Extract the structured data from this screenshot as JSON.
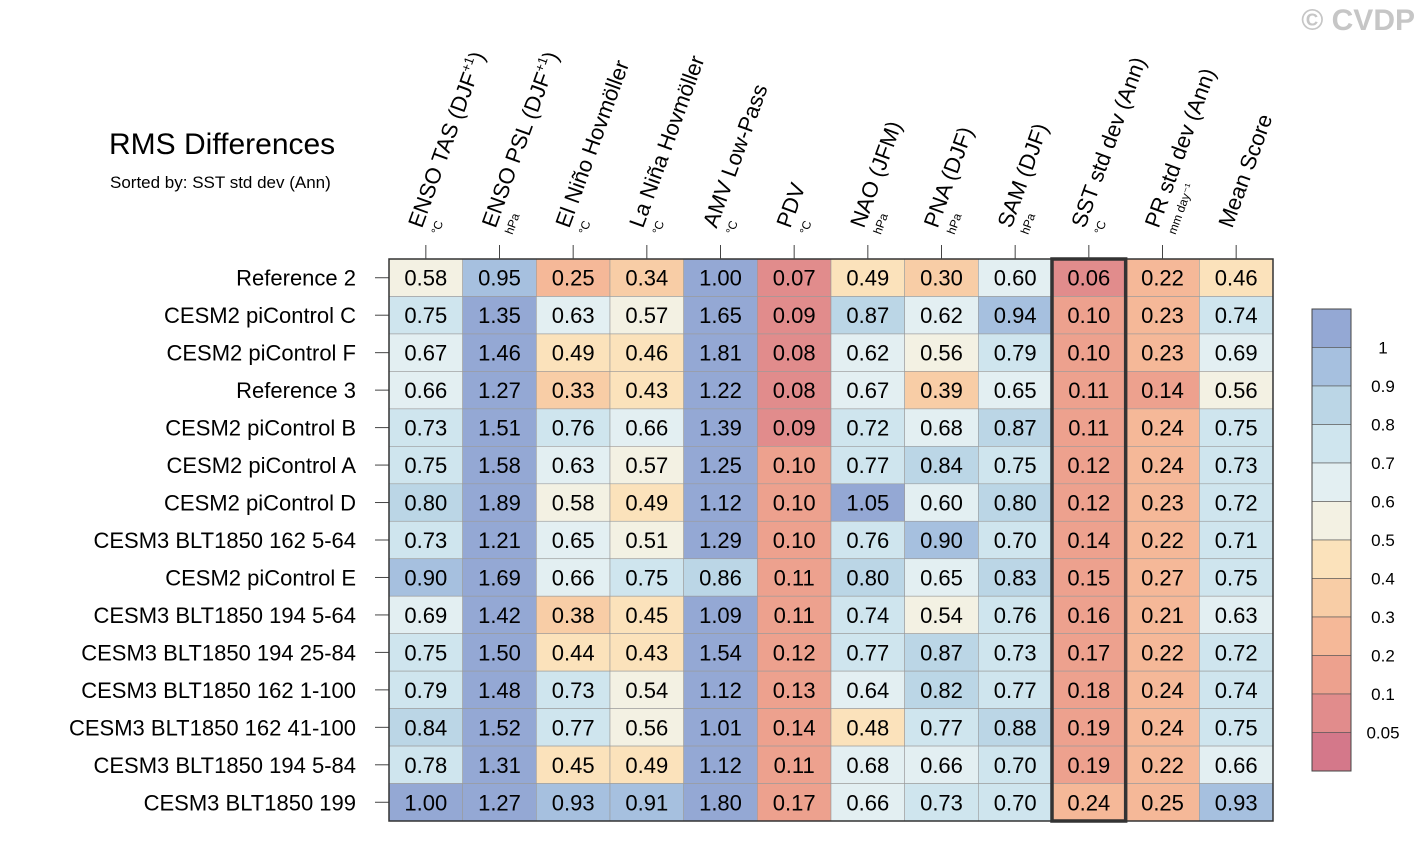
{
  "watermark": "© CVDP",
  "chart_data": {
    "type": "heatmap",
    "title": "RMS Differences",
    "subtitle": "Sorted by: SST std dev (Ann)",
    "highlighted_column": "SST std dev (Ann)",
    "columns": [
      {
        "label": "ENSO TAS (DJF",
        "sup": "+1",
        "close": ")",
        "unit": "°C"
      },
      {
        "label": "ENSO PSL (DJF",
        "sup": "+1",
        "close": ")",
        "unit": "hPa"
      },
      {
        "label": "El Niño Hovmöller",
        "sup": "",
        "close": "",
        "unit": "°C"
      },
      {
        "label": "La Niña Hovmöller",
        "sup": "",
        "close": "",
        "unit": "°C"
      },
      {
        "label": "AMV Low-Pass",
        "sup": "",
        "close": "",
        "unit": "°C"
      },
      {
        "label": "PDV",
        "sup": "",
        "close": "",
        "unit": "°C"
      },
      {
        "label": "NAO (JFM)",
        "sup": "",
        "close": "",
        "unit": "hPa"
      },
      {
        "label": "PNA (DJF)",
        "sup": "",
        "close": "",
        "unit": "hPa"
      },
      {
        "label": "SAM (DJF)",
        "sup": "",
        "close": "",
        "unit": "hPa"
      },
      {
        "label": "SST std dev (Ann)",
        "sup": "",
        "close": "",
        "unit": "°C"
      },
      {
        "label": "PR std dev (Ann)",
        "sup": "",
        "close": "",
        "unit": "mm day⁻¹"
      },
      {
        "label": "Mean Score",
        "sup": "",
        "close": "",
        "unit": ""
      }
    ],
    "rows": [
      {
        "name": "Reference 2",
        "values": [
          "0.58",
          "0.95",
          "0.25",
          "0.34",
          "1.00",
          "0.07",
          "0.49",
          "0.30",
          "0.60",
          "0.06",
          "0.22",
          "0.46"
        ]
      },
      {
        "name": "CESM2 piControl C",
        "values": [
          "0.75",
          "1.35",
          "0.63",
          "0.57",
          "1.65",
          "0.09",
          "0.87",
          "0.62",
          "0.94",
          "0.10",
          "0.23",
          "0.74"
        ]
      },
      {
        "name": "CESM2 piControl F",
        "values": [
          "0.67",
          "1.46",
          "0.49",
          "0.46",
          "1.81",
          "0.08",
          "0.62",
          "0.56",
          "0.79",
          "0.10",
          "0.23",
          "0.69"
        ]
      },
      {
        "name": "Reference 3",
        "values": [
          "0.66",
          "1.27",
          "0.33",
          "0.43",
          "1.22",
          "0.08",
          "0.67",
          "0.39",
          "0.65",
          "0.11",
          "0.14",
          "0.56"
        ]
      },
      {
        "name": "CESM2 piControl B",
        "values": [
          "0.73",
          "1.51",
          "0.76",
          "0.66",
          "1.39",
          "0.09",
          "0.72",
          "0.68",
          "0.87",
          "0.11",
          "0.24",
          "0.75"
        ]
      },
      {
        "name": "CESM2 piControl A",
        "values": [
          "0.75",
          "1.58",
          "0.63",
          "0.57",
          "1.25",
          "0.10",
          "0.77",
          "0.84",
          "0.75",
          "0.12",
          "0.24",
          "0.73"
        ]
      },
      {
        "name": "CESM2 piControl D",
        "values": [
          "0.80",
          "1.89",
          "0.58",
          "0.49",
          "1.12",
          "0.10",
          "1.05",
          "0.60",
          "0.80",
          "0.12",
          "0.23",
          "0.72"
        ]
      },
      {
        "name": "CESM3 BLT1850 162 5-64",
        "values": [
          "0.73",
          "1.21",
          "0.65",
          "0.51",
          "1.29",
          "0.10",
          "0.76",
          "0.90",
          "0.70",
          "0.14",
          "0.22",
          "0.71"
        ]
      },
      {
        "name": "CESM2 piControl E",
        "values": [
          "0.90",
          "1.69",
          "0.66",
          "0.75",
          "0.86",
          "0.11",
          "0.80",
          "0.65",
          "0.83",
          "0.15",
          "0.27",
          "0.75"
        ]
      },
      {
        "name": "CESM3 BLT1850 194 5-64",
        "values": [
          "0.69",
          "1.42",
          "0.38",
          "0.45",
          "1.09",
          "0.11",
          "0.74",
          "0.54",
          "0.76",
          "0.16",
          "0.21",
          "0.63"
        ]
      },
      {
        "name": "CESM3 BLT1850 194 25-84",
        "values": [
          "0.75",
          "1.50",
          "0.44",
          "0.43",
          "1.54",
          "0.12",
          "0.77",
          "0.87",
          "0.73",
          "0.17",
          "0.22",
          "0.72"
        ]
      },
      {
        "name": "CESM3 BLT1850 162 1-100",
        "values": [
          "0.79",
          "1.48",
          "0.73",
          "0.54",
          "1.12",
          "0.13",
          "0.64",
          "0.82",
          "0.77",
          "0.18",
          "0.24",
          "0.74"
        ]
      },
      {
        "name": "CESM3 BLT1850 162 41-100",
        "values": [
          "0.84",
          "1.52",
          "0.77",
          "0.56",
          "1.01",
          "0.14",
          "0.48",
          "0.77",
          "0.88",
          "0.19",
          "0.24",
          "0.75"
        ]
      },
      {
        "name": "CESM3 BLT1850 194 5-84",
        "values": [
          "0.78",
          "1.31",
          "0.45",
          "0.49",
          "1.12",
          "0.11",
          "0.68",
          "0.66",
          "0.70",
          "0.19",
          "0.22",
          "0.66"
        ]
      },
      {
        "name": "CESM3 BLT1850 199",
        "values": [
          "1.00",
          "1.27",
          "0.93",
          "0.91",
          "1.80",
          "0.17",
          "0.66",
          "0.73",
          "0.70",
          "0.24",
          "0.25",
          "0.93"
        ]
      }
    ],
    "colorbar": {
      "levels": [
        0.05,
        0.1,
        0.2,
        0.3,
        0.4,
        0.5,
        0.6,
        0.7,
        0.8,
        0.9,
        1
      ],
      "labels": [
        "0.05",
        "0.1",
        "0.2",
        "0.3",
        "0.4",
        "0.5",
        "0.6",
        "0.7",
        "0.8",
        "0.9",
        "1"
      ],
      "colors": [
        "#d4788a",
        "#e18c8c",
        "#eda18e",
        "#f5b898",
        "#f8cda6",
        "#fbe2bb",
        "#f3f1e3",
        "#e3eff2",
        "#cfe5ee",
        "#bbd6e6",
        "#a6c0df",
        "#94a8d4"
      ]
    }
  }
}
